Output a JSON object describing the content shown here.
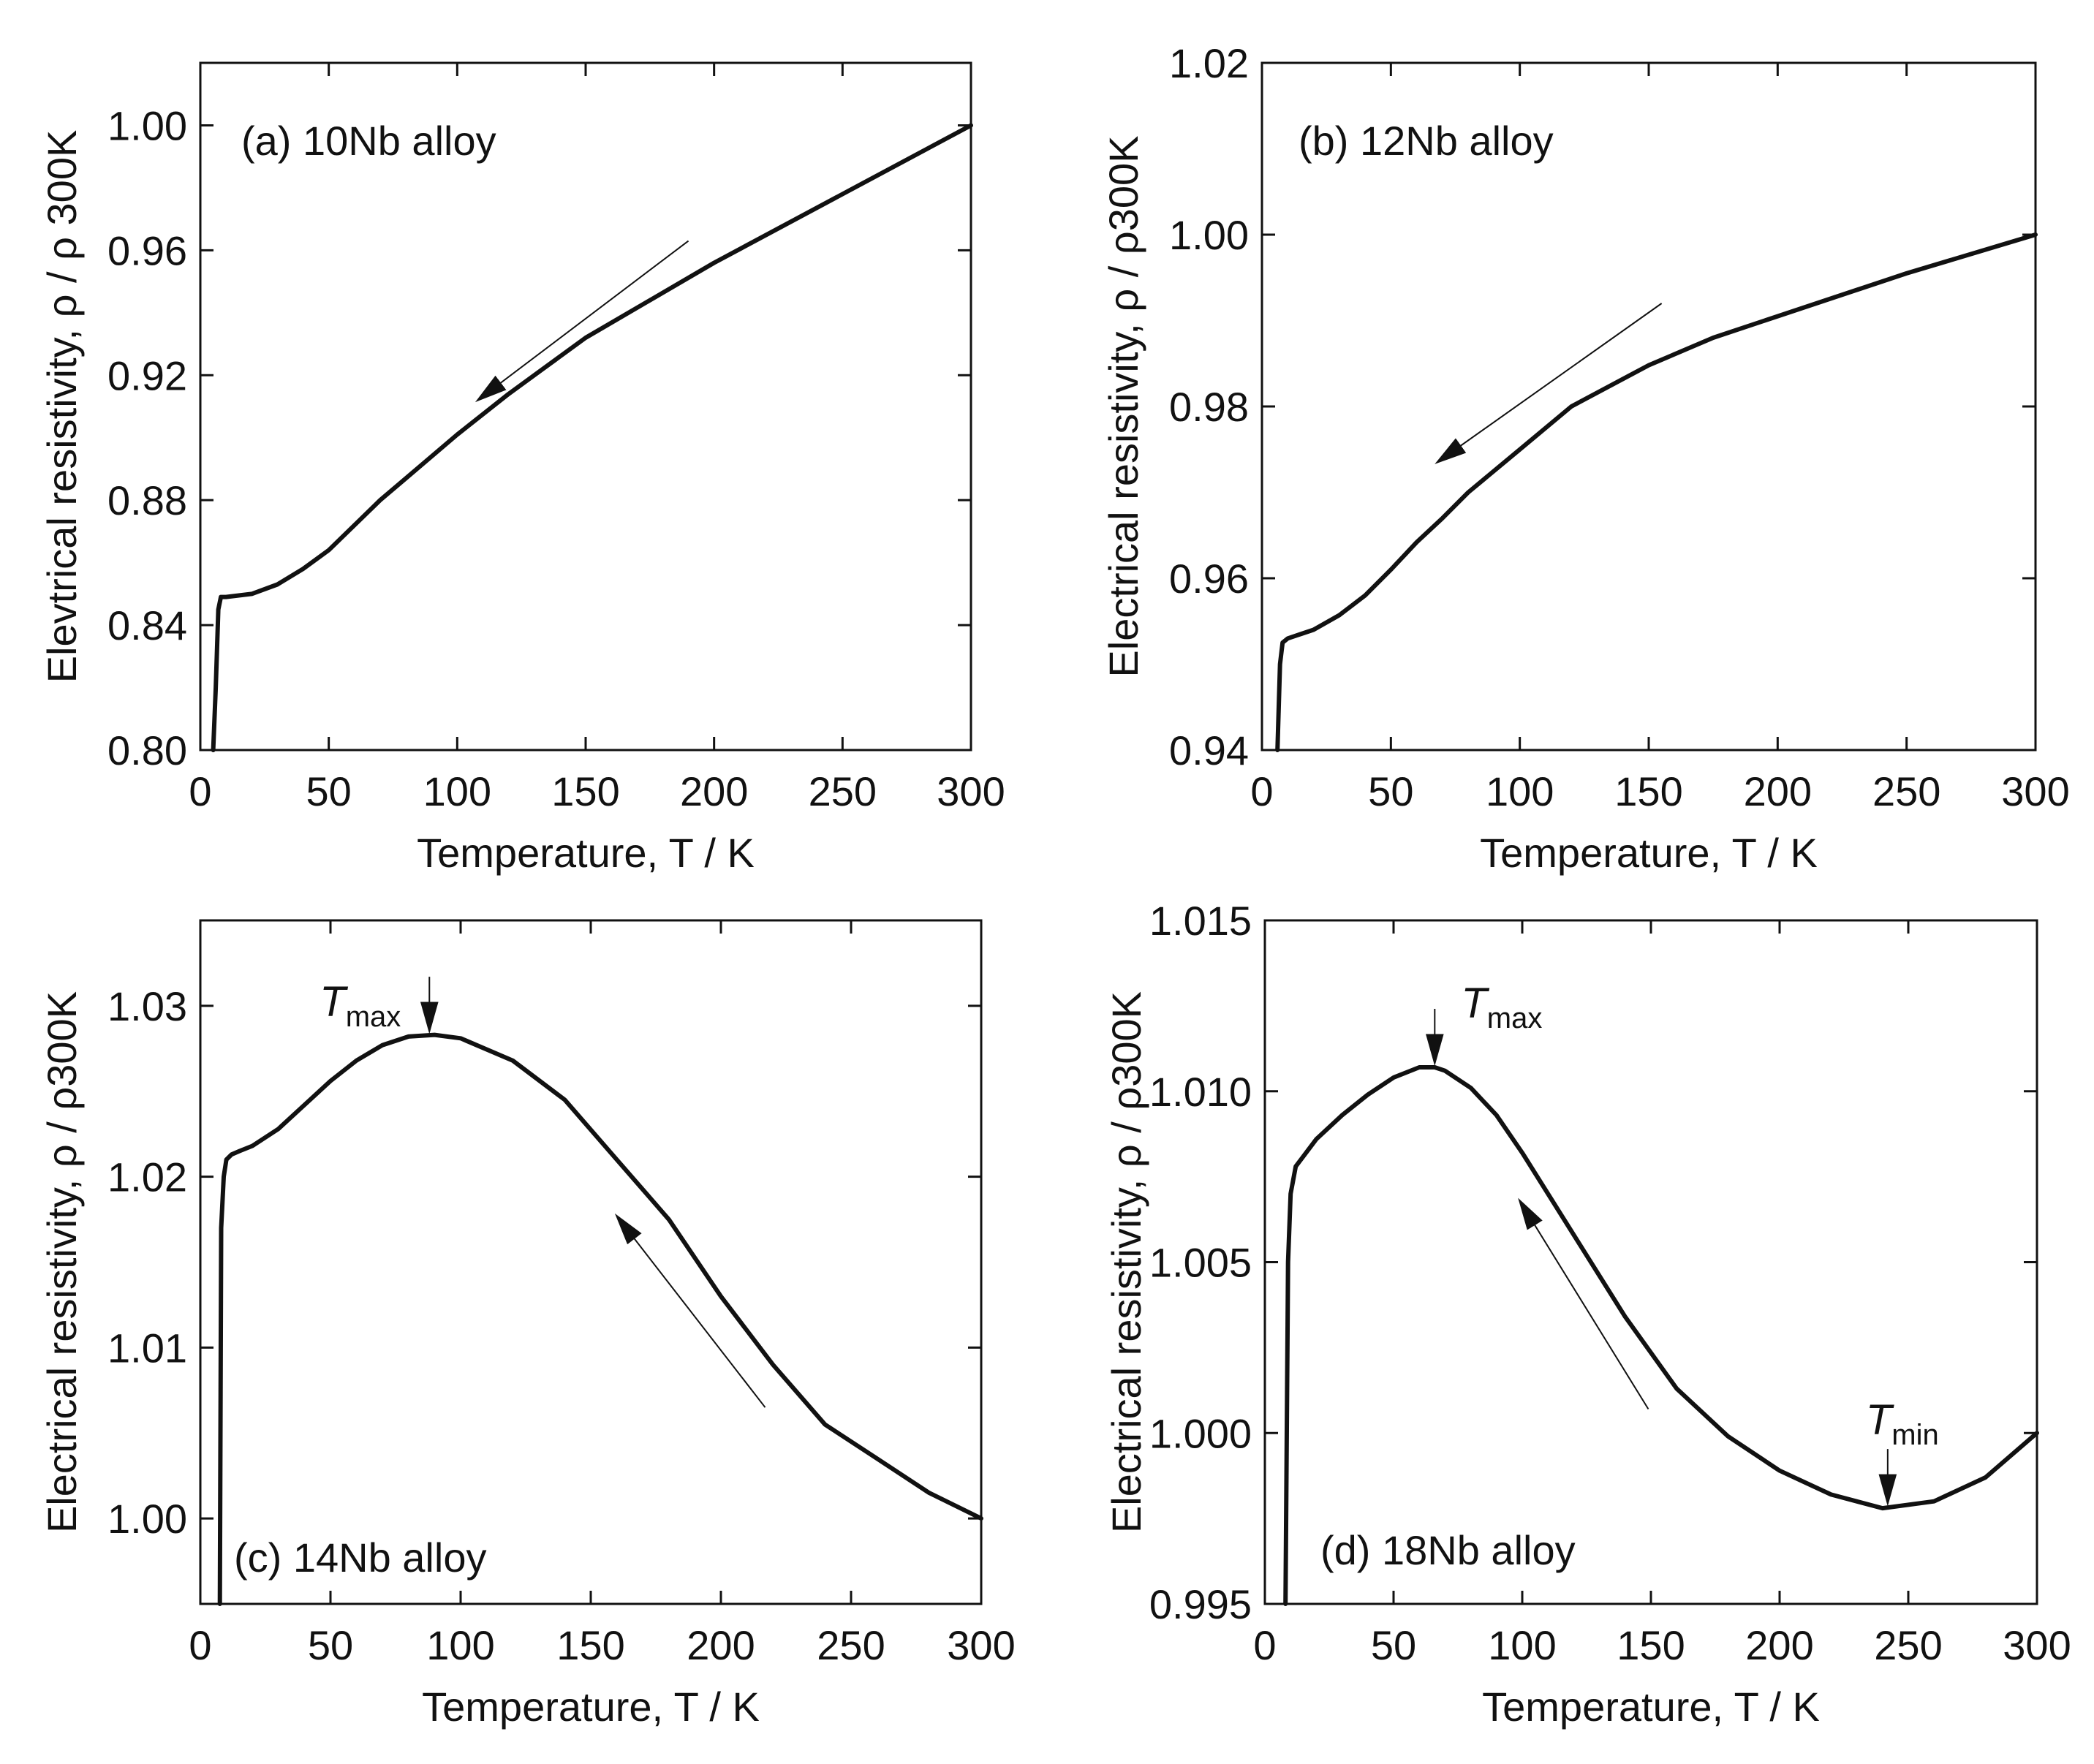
{
  "chart_data": [
    {
      "type": "line",
      "panel": "a",
      "label": "(a) 10Nb alloy",
      "xlabel": "Temperature, T / K",
      "ylabel": "Elevtrical resistivity, ρ / ρ 300K",
      "xlim": [
        0,
        300
      ],
      "ylim": [
        0.8,
        1.02
      ],
      "xticks": [
        "0",
        "50",
        "100",
        "150",
        "200",
        "250",
        "300"
      ],
      "yticks": [
        "0.80",
        "0.84",
        "0.88",
        "0.92",
        "0.96",
        "1.00"
      ],
      "ytick_values": [
        0.8,
        0.84,
        0.88,
        0.92,
        0.96,
        1.0
      ],
      "series": [
        {
          "name": "10Nb",
          "x": [
            5,
            6,
            7,
            8,
            10,
            15,
            20,
            30,
            40,
            50,
            60,
            70,
            80,
            100,
            120,
            150,
            200,
            250,
            300
          ],
          "y": [
            0.8,
            0.82,
            0.845,
            0.849,
            0.849,
            0.8495,
            0.85,
            0.853,
            0.858,
            0.864,
            0.872,
            0.88,
            0.887,
            0.901,
            0.914,
            0.932,
            0.956,
            0.978,
            1.0
          ]
        }
      ],
      "arrow": {
        "from": [
          190,
          0.963
        ],
        "to": [
          108,
          0.912
        ]
      }
    },
    {
      "type": "line",
      "panel": "b",
      "label": "(b) 12Nb alloy",
      "xlabel": "Temperature, T / K",
      "ylabel": "Electrical resistivity, ρ / ρ300K",
      "xlim": [
        0,
        300
      ],
      "ylim": [
        0.94,
        1.02
      ],
      "xticks": [
        "0",
        "50",
        "100",
        "150",
        "200",
        "250",
        "300"
      ],
      "yticks": [
        "0.94",
        "0.96",
        "0.98",
        "1.00",
        "1.02"
      ],
      "ytick_values": [
        0.94,
        0.96,
        0.98,
        1.0,
        1.02
      ],
      "series": [
        {
          "name": "12Nb",
          "x": [
            6,
            7,
            8,
            10,
            15,
            20,
            30,
            40,
            50,
            60,
            70,
            80,
            100,
            120,
            150,
            175,
            200,
            250,
            300
          ],
          "y": [
            0.94,
            0.95,
            0.9525,
            0.953,
            0.9535,
            0.954,
            0.9557,
            0.958,
            0.961,
            0.9642,
            0.967,
            0.97,
            0.975,
            0.98,
            0.9848,
            0.988,
            0.9905,
            0.9955,
            1.0
          ]
        }
      ],
      "arrow": {
        "from": [
          155,
          0.992
        ],
        "to": [
          68,
          0.9735
        ]
      }
    },
    {
      "type": "line",
      "panel": "c",
      "label": "(c) 14Nb alloy",
      "xlabel": "Temperature, T / K",
      "ylabel": "Electrical resistivity, ρ / ρ300K",
      "xlim": [
        0,
        300
      ],
      "ylim": [
        0.995,
        1.035
      ],
      "xticks": [
        "0",
        "50",
        "100",
        "150",
        "200",
        "250",
        "300"
      ],
      "yticks": [
        "1.00",
        "1.01",
        "1.02",
        "1.03"
      ],
      "ytick_values": [
        1.0,
        1.01,
        1.02,
        1.03
      ],
      "series": [
        {
          "name": "14Nb",
          "x": [
            7.5,
            8,
            9,
            10,
            12,
            15,
            20,
            30,
            40,
            50,
            60,
            70,
            80,
            90,
            100,
            120,
            140,
            160,
            180,
            200,
            220,
            240,
            260,
            280,
            300
          ],
          "y": [
            0.995,
            1.017,
            1.02,
            1.021,
            1.0213,
            1.0215,
            1.0218,
            1.0228,
            1.0242,
            1.0256,
            1.0268,
            1.0277,
            1.0282,
            1.0283,
            1.0281,
            1.0268,
            1.0245,
            1.021,
            1.0175,
            1.013,
            1.009,
            1.0055,
            1.0035,
            1.0015,
            1.0
          ]
        }
      ],
      "arrow": {
        "from": [
          217,
          1.0065
        ],
        "to": [
          160,
          1.0177
        ]
      },
      "annotations": [
        {
          "main": "T",
          "sub": "max",
          "x": 88
        }
      ]
    },
    {
      "type": "line",
      "panel": "d",
      "label": "(d) 18Nb alloy",
      "xlabel": "Temperature, T / K",
      "ylabel": "Electrical resistivity, ρ / ρ300K",
      "xlim": [
        0,
        300
      ],
      "ylim": [
        0.995,
        1.015
      ],
      "xticks": [
        "0",
        "50",
        "100",
        "150",
        "200",
        "250",
        "300"
      ],
      "yticks": [
        "0.995",
        "1.000",
        "1.005",
        "1.010",
        "1.015"
      ],
      "ytick_values": [
        0.995,
        1.0,
        1.005,
        1.01,
        1.015
      ],
      "series": [
        {
          "name": "18Nb",
          "x": [
            8,
            9,
            10,
            12,
            15,
            20,
            30,
            40,
            50,
            60,
            66,
            70,
            80,
            90,
            100,
            120,
            140,
            160,
            180,
            200,
            220,
            240,
            260,
            280,
            300
          ],
          "y": [
            0.995,
            1.005,
            1.007,
            1.0078,
            1.0081,
            1.0086,
            1.0093,
            1.0099,
            1.0104,
            1.0107,
            1.0107,
            1.0106,
            1.0101,
            1.0093,
            1.0082,
            1.0058,
            1.0034,
            1.0013,
            0.9999,
            0.9989,
            0.9982,
            0.9978,
            0.998,
            0.9987,
            1.0
          ]
        }
      ],
      "arrow": {
        "from": [
          149,
          1.0007
        ],
        "to": [
          99,
          1.0068
        ]
      },
      "annotations": [
        {
          "main": "T",
          "sub": "max",
          "x": 66
        },
        {
          "main": "T",
          "sub": "min",
          "x": 242
        }
      ]
    }
  ]
}
